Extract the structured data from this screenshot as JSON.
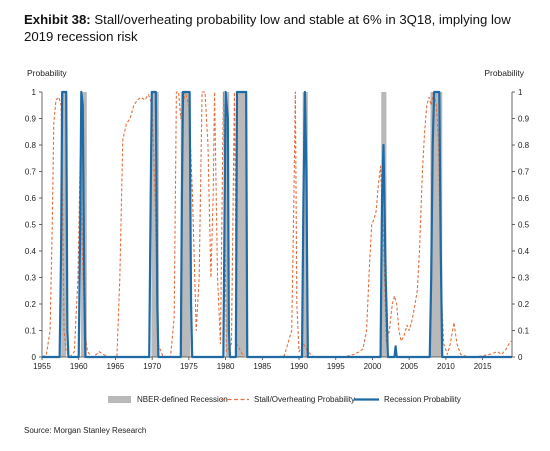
{
  "header": {
    "exhibit": "Exhibit 38:",
    "title": "Stall/overheating probability low and stable at 6% in 3Q18, implying low 2019 recession risk"
  },
  "source": "Source: Morgan Stanley Research",
  "chart_data": {
    "type": "line",
    "ylabel_left": "Probability",
    "ylabel_right": "Probability",
    "xlim": [
      1955,
      2019
    ],
    "ylim": [
      0,
      1
    ],
    "x_ticks": [
      1955,
      1960,
      1965,
      1970,
      1975,
      1980,
      1985,
      1990,
      1995,
      2000,
      2005,
      2010,
      2015
    ],
    "y_ticks": [
      0,
      0.1,
      0.2,
      0.3,
      0.4,
      0.5,
      0.6,
      0.7,
      0.8,
      0.9,
      1
    ],
    "y_tick_labels": [
      "0",
      "0.1",
      "0.2",
      "0.3",
      "0.4",
      "0.5",
      "0.6",
      "0.7",
      "0.8",
      "0.9",
      "1"
    ],
    "legend": [
      "NBER-defined Recession",
      "Stall/Overheating Probability",
      "Recession Probability"
    ],
    "legend_position": "bottom",
    "colors": {
      "recession": "#b9b9b9",
      "stall": "#e4703f",
      "prob": "#1f6aa5"
    },
    "recessions": [
      [
        1957.6,
        1958.3
      ],
      [
        1960.3,
        1961.1
      ],
      [
        1969.9,
        1970.9
      ],
      [
        1973.9,
        1975.2
      ],
      [
        1980.0,
        1980.5
      ],
      [
        1981.5,
        1982.9
      ],
      [
        1990.5,
        1991.2
      ],
      [
        2001.2,
        2001.9
      ],
      [
        2007.9,
        2009.5
      ]
    ],
    "series": [
      {
        "name": "Stall/Overheating Probability",
        "style": "dashed",
        "points": [
          [
            1955.0,
            0
          ],
          [
            1955.6,
            0.01
          ],
          [
            1956.1,
            0.1
          ],
          [
            1956.4,
            0.5
          ],
          [
            1956.6,
            0.88
          ],
          [
            1956.9,
            0.97
          ],
          [
            1957.3,
            0.98
          ],
          [
            1957.6,
            0.95
          ],
          [
            1957.8,
            0.6
          ],
          [
            1958.0,
            0.1
          ],
          [
            1958.3,
            0.02
          ],
          [
            1958.8,
            0
          ],
          [
            1959.4,
            0.02
          ],
          [
            1959.9,
            0.3
          ],
          [
            1960.2,
            0.75
          ],
          [
            1960.5,
            0.4
          ],
          [
            1960.8,
            0.1
          ],
          [
            1961.2,
            0.02
          ],
          [
            1961.8,
            0
          ],
          [
            1962.4,
            0.01
          ],
          [
            1962.8,
            0.02
          ],
          [
            1963.3,
            0.01
          ],
          [
            1964.2,
            0
          ],
          [
            1965.2,
            0
          ],
          [
            1965.6,
            0.3
          ],
          [
            1966.0,
            0.82
          ],
          [
            1966.5,
            0.88
          ],
          [
            1967.0,
            0.9
          ],
          [
            1967.5,
            0.95
          ],
          [
            1968.0,
            0.97
          ],
          [
            1968.5,
            0.98
          ],
          [
            1969.0,
            0.97
          ],
          [
            1969.5,
            0.99
          ],
          [
            1970.0,
            0.95
          ],
          [
            1970.4,
            0.6
          ],
          [
            1970.8,
            0.05
          ],
          [
            1971.5,
            0
          ],
          [
            1972.5,
            0
          ],
          [
            1973.0,
            0.15
          ],
          [
            1973.3,
            1
          ],
          [
            1973.6,
            1
          ],
          [
            1973.9,
            0.9
          ],
          [
            1974.5,
            1
          ],
          [
            1975.0,
            0.95
          ],
          [
            1975.5,
            0.6
          ],
          [
            1976.0,
            0.1
          ],
          [
            1976.4,
            0.3
          ],
          [
            1976.8,
            1
          ],
          [
            1977.2,
            1
          ],
          [
            1977.6,
            0.8
          ],
          [
            1978.0,
            0.3
          ],
          [
            1978.3,
            0.6
          ],
          [
            1978.5,
            1
          ],
          [
            1978.9,
            0.3
          ],
          [
            1979.3,
            0.05
          ],
          [
            1979.7,
            1
          ],
          [
            1980.1,
            0.02
          ],
          [
            1980.8,
            0.05
          ],
          [
            1981.2,
            1
          ],
          [
            1981.5,
            0.05
          ],
          [
            1982.5,
            0
          ],
          [
            1983.5,
            0
          ],
          [
            1985.0,
            0
          ],
          [
            1987.0,
            0
          ],
          [
            1988.0,
            0.005
          ],
          [
            1989.0,
            0.1
          ],
          [
            1989.3,
            0.6
          ],
          [
            1989.5,
            1
          ],
          [
            1989.7,
            0.2
          ],
          [
            1990.0,
            0.02
          ],
          [
            1990.6,
            0.05
          ],
          [
            1991.2,
            0.02
          ],
          [
            1992.0,
            0
          ],
          [
            1994.0,
            0
          ],
          [
            1996.0,
            0
          ],
          [
            1997.5,
            0.01
          ],
          [
            1998.2,
            0.02
          ],
          [
            1998.7,
            0.03
          ],
          [
            1999.2,
            0.1
          ],
          [
            1999.6,
            0.35
          ],
          [
            1999.9,
            0.5
          ],
          [
            2000.2,
            0.52
          ],
          [
            2000.5,
            0.55
          ],
          [
            2000.8,
            0.65
          ],
          [
            2001.1,
            0.72
          ],
          [
            2001.5,
            0.45
          ],
          [
            2001.9,
            0.05
          ],
          [
            2002.3,
            0.1
          ],
          [
            2002.7,
            0.2
          ],
          [
            2003.0,
            0.23
          ],
          [
            2003.3,
            0.2
          ],
          [
            2003.6,
            0.1
          ],
          [
            2003.9,
            0.06
          ],
          [
            2004.3,
            0.08
          ],
          [
            2004.7,
            0.12
          ],
          [
            2005.0,
            0.1
          ],
          [
            2005.4,
            0.14
          ],
          [
            2005.8,
            0.2
          ],
          [
            2006.1,
            0.25
          ],
          [
            2006.4,
            0.4
          ],
          [
            2006.8,
            0.7
          ],
          [
            2007.1,
            0.85
          ],
          [
            2007.4,
            0.95
          ],
          [
            2007.7,
            0.98
          ],
          [
            2008.0,
            0.95
          ],
          [
            2008.3,
            1
          ],
          [
            2008.7,
            0.95
          ],
          [
            2009.0,
            0.8
          ],
          [
            2009.3,
            0.3
          ],
          [
            2009.7,
            0.05
          ],
          [
            2010.2,
            0.01
          ],
          [
            2010.6,
            0.05
          ],
          [
            2011.1,
            0.13
          ],
          [
            2011.5,
            0.05
          ],
          [
            2012.0,
            0.01
          ],
          [
            2013.0,
            0
          ],
          [
            2014.0,
            0
          ],
          [
            2015.0,
            0.005
          ],
          [
            2016.0,
            0.01
          ],
          [
            2017.0,
            0.02
          ],
          [
            2017.6,
            0.01
          ],
          [
            2018.2,
            0.03
          ],
          [
            2018.6,
            0.05
          ],
          [
            2018.9,
            0.06
          ]
        ]
      },
      {
        "name": "Recession Probability",
        "style": "solid",
        "points": [
          [
            1955.0,
            0
          ],
          [
            1957.4,
            0
          ],
          [
            1957.6,
            0.4
          ],
          [
            1957.75,
            1
          ],
          [
            1958.3,
            1
          ],
          [
            1958.45,
            0.1
          ],
          [
            1958.6,
            0
          ],
          [
            1960.0,
            0
          ],
          [
            1960.2,
            0.5
          ],
          [
            1960.35,
            1
          ],
          [
            1960.55,
            0.95
          ],
          [
            1960.75,
            0.3
          ],
          [
            1960.9,
            0
          ],
          [
            1969.6,
            0
          ],
          [
            1969.8,
            0.6
          ],
          [
            1969.95,
            1
          ],
          [
            1970.5,
            1
          ],
          [
            1970.7,
            0.2
          ],
          [
            1970.85,
            0
          ],
          [
            1973.9,
            0
          ],
          [
            1974.05,
            0.6
          ],
          [
            1974.2,
            1
          ],
          [
            1975.1,
            1
          ],
          [
            1975.3,
            0.2
          ],
          [
            1975.45,
            0
          ],
          [
            1979.7,
            0
          ],
          [
            1979.85,
            0.5
          ],
          [
            1980.0,
            1
          ],
          [
            1980.3,
            0.9
          ],
          [
            1980.45,
            0.1
          ],
          [
            1980.6,
            0
          ],
          [
            1981.4,
            0
          ],
          [
            1981.55,
            1
          ],
          [
            1982.8,
            1
          ],
          [
            1982.95,
            0
          ],
          [
            1990.4,
            0
          ],
          [
            1990.6,
            0.6
          ],
          [
            1990.8,
            1
          ],
          [
            1991.0,
            0.7
          ],
          [
            1991.2,
            0
          ],
          [
            2001.1,
            0
          ],
          [
            2001.3,
            0.6
          ],
          [
            2001.5,
            0.8
          ],
          [
            2001.8,
            0.3
          ],
          [
            2002.1,
            0
          ],
          [
            2003.0,
            0
          ],
          [
            2003.15,
            0.04
          ],
          [
            2003.3,
            0
          ],
          [
            2007.8,
            0
          ],
          [
            2008.0,
            0.3
          ],
          [
            2008.2,
            0.8
          ],
          [
            2008.4,
            1
          ],
          [
            2009.1,
            1
          ],
          [
            2009.3,
            0.4
          ],
          [
            2009.5,
            0
          ],
          [
            2019.0,
            0
          ]
        ]
      }
    ]
  }
}
